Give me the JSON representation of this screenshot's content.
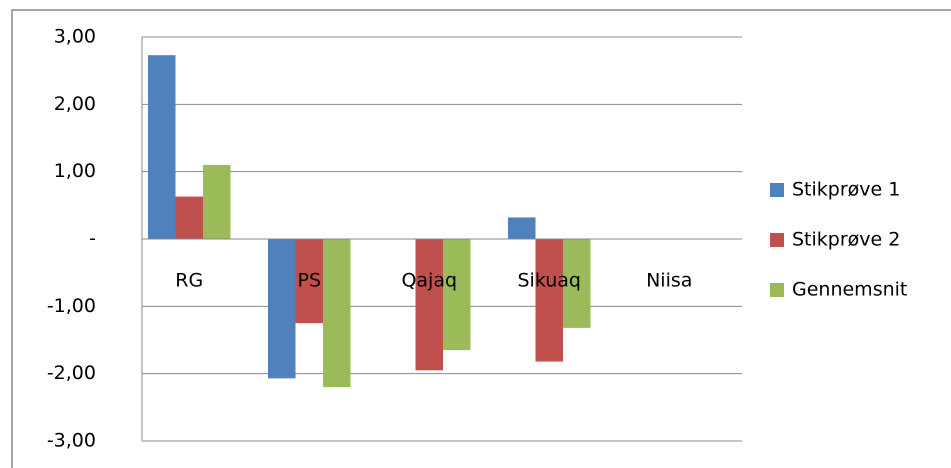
{
  "chart_data": {
    "type": "bar",
    "categories": [
      "RG",
      "PS",
      "Qajaq",
      "Sikuaq",
      "Niisa"
    ],
    "series": [
      {
        "name": "Stikprøve 1",
        "color": "#4f81bd",
        "values": [
          2.73,
          -2.07,
          null,
          0.32,
          null
        ]
      },
      {
        "name": "Stikprøve 2",
        "color": "#c0504d",
        "values": [
          0.63,
          -1.25,
          -1.95,
          -1.82,
          null
        ]
      },
      {
        "name": "Gennemsnit",
        "color": "#9bbb59",
        "values": [
          1.1,
          -2.2,
          -1.65,
          -1.32,
          null
        ]
      }
    ],
    "ylim": [
      -3,
      3
    ],
    "yticks": [
      {
        "value": 3,
        "label": "3,00"
      },
      {
        "value": 2,
        "label": "2,00"
      },
      {
        "value": 1,
        "label": "1,00"
      },
      {
        "value": 0,
        "label": "-"
      },
      {
        "value": -1,
        "label": "-1,00"
      },
      {
        "value": -2,
        "label": "-2,00"
      },
      {
        "value": -3,
        "label": "-3,00"
      }
    ],
    "grid": true,
    "legend": "right"
  }
}
